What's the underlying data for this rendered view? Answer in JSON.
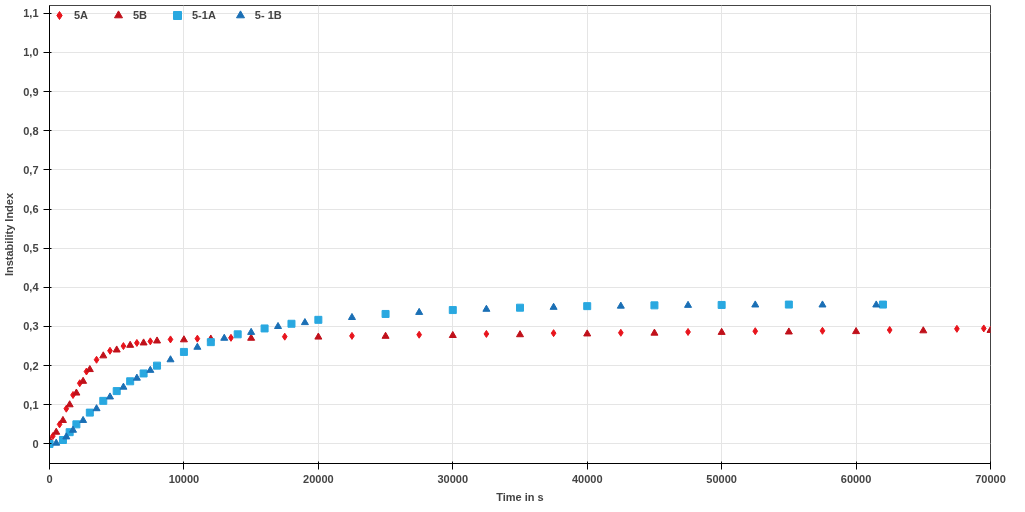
{
  "chart_data": {
    "type": "scatter",
    "xlabel": "Time in s",
    "ylabel": "Instability Index",
    "xlim": [
      0,
      70000
    ],
    "ylim": [
      -0.05,
      1.12
    ],
    "xticks": [
      0,
      10000,
      20000,
      30000,
      40000,
      50000,
      60000,
      70000
    ],
    "yticks": [
      0,
      {
        "value": 0.1,
        "label": "0,1"
      },
      {
        "value": 0.2,
        "label": "0,2"
      },
      {
        "value": 0.3,
        "label": "0,3"
      },
      {
        "value": 0.4,
        "label": "0,4"
      },
      {
        "value": 0.5,
        "label": "0,5"
      },
      {
        "value": 0.6,
        "label": "0,6"
      },
      {
        "value": 0.7,
        "label": "0,7"
      },
      {
        "value": 0.8,
        "label": "0,8"
      },
      {
        "value": 0.9,
        "label": "0,9"
      },
      {
        "value": 1.0,
        "label": "1,0"
      },
      {
        "value": 1.1,
        "label": "1,1"
      }
    ],
    "grid": true,
    "legend": "top left",
    "series": [
      {
        "name": "5A",
        "color": "#e8141c",
        "marker": "diamond",
        "x": [
          250,
          750,
          1250,
          1750,
          2250,
          2750,
          3500,
          4500,
          5500,
          6500,
          7500,
          9000,
          11000,
          13500,
          17500,
          22500,
          27500,
          32500,
          37500,
          42500,
          47500,
          52500,
          57500,
          62500,
          67500,
          69500
        ],
        "values": [
          0.02,
          0.05,
          0.09,
          0.125,
          0.155,
          0.185,
          0.215,
          0.238,
          0.25,
          0.258,
          0.262,
          0.267,
          0.269,
          0.271,
          0.274,
          0.276,
          0.279,
          0.281,
          0.283,
          0.284,
          0.286,
          0.288,
          0.289,
          0.291,
          0.294,
          0.295
        ]
      },
      {
        "name": "5B",
        "color": "#c0101a",
        "marker": "triangle",
        "x": [
          0,
          500,
          1000,
          1500,
          2000,
          2500,
          3000,
          4000,
          5000,
          6000,
          7000,
          8000,
          10000,
          12000,
          15000,
          20000,
          25000,
          30000,
          35000,
          40000,
          45000,
          50000,
          55000,
          60000,
          65000,
          70000
        ],
        "values": [
          0.01,
          0.03,
          0.06,
          0.1,
          0.13,
          0.16,
          0.19,
          0.225,
          0.24,
          0.252,
          0.258,
          0.263,
          0.266,
          0.268,
          0.27,
          0.273,
          0.275,
          0.277,
          0.279,
          0.281,
          0.283,
          0.285,
          0.286,
          0.287,
          0.289,
          0.29
        ]
      },
      {
        "name": "5-1A",
        "color": "#29a8e0",
        "marker": "square",
        "x": [
          0,
          1000,
          1500,
          2000,
          3000,
          4000,
          5000,
          6000,
          7000,
          8000,
          10000,
          12000,
          14000,
          16000,
          18000,
          20000,
          25000,
          30000,
          35000,
          40000,
          45000,
          50000,
          55000,
          62000
        ],
        "values": [
          0,
          0.01,
          0.03,
          0.05,
          0.08,
          0.11,
          0.135,
          0.16,
          0.18,
          0.2,
          0.235,
          0.26,
          0.28,
          0.295,
          0.307,
          0.317,
          0.332,
          0.342,
          0.348,
          0.352,
          0.354,
          0.355,
          0.356,
          0.356
        ]
      },
      {
        "name": "5- 1B",
        "color": "#1a6fb5",
        "marker": "triangle",
        "x": [
          500,
          1250,
          1750,
          2500,
          3500,
          4500,
          5500,
          6500,
          7500,
          9000,
          11000,
          13000,
          15000,
          17000,
          19000,
          22500,
          27500,
          32500,
          37500,
          42500,
          47500,
          52500,
          57500,
          61500
        ],
        "values": [
          0.002,
          0.018,
          0.035,
          0.06,
          0.09,
          0.12,
          0.145,
          0.168,
          0.188,
          0.215,
          0.247,
          0.27,
          0.285,
          0.3,
          0.31,
          0.323,
          0.336,
          0.344,
          0.349,
          0.352,
          0.354,
          0.355,
          0.355,
          0.355
        ]
      }
    ]
  }
}
